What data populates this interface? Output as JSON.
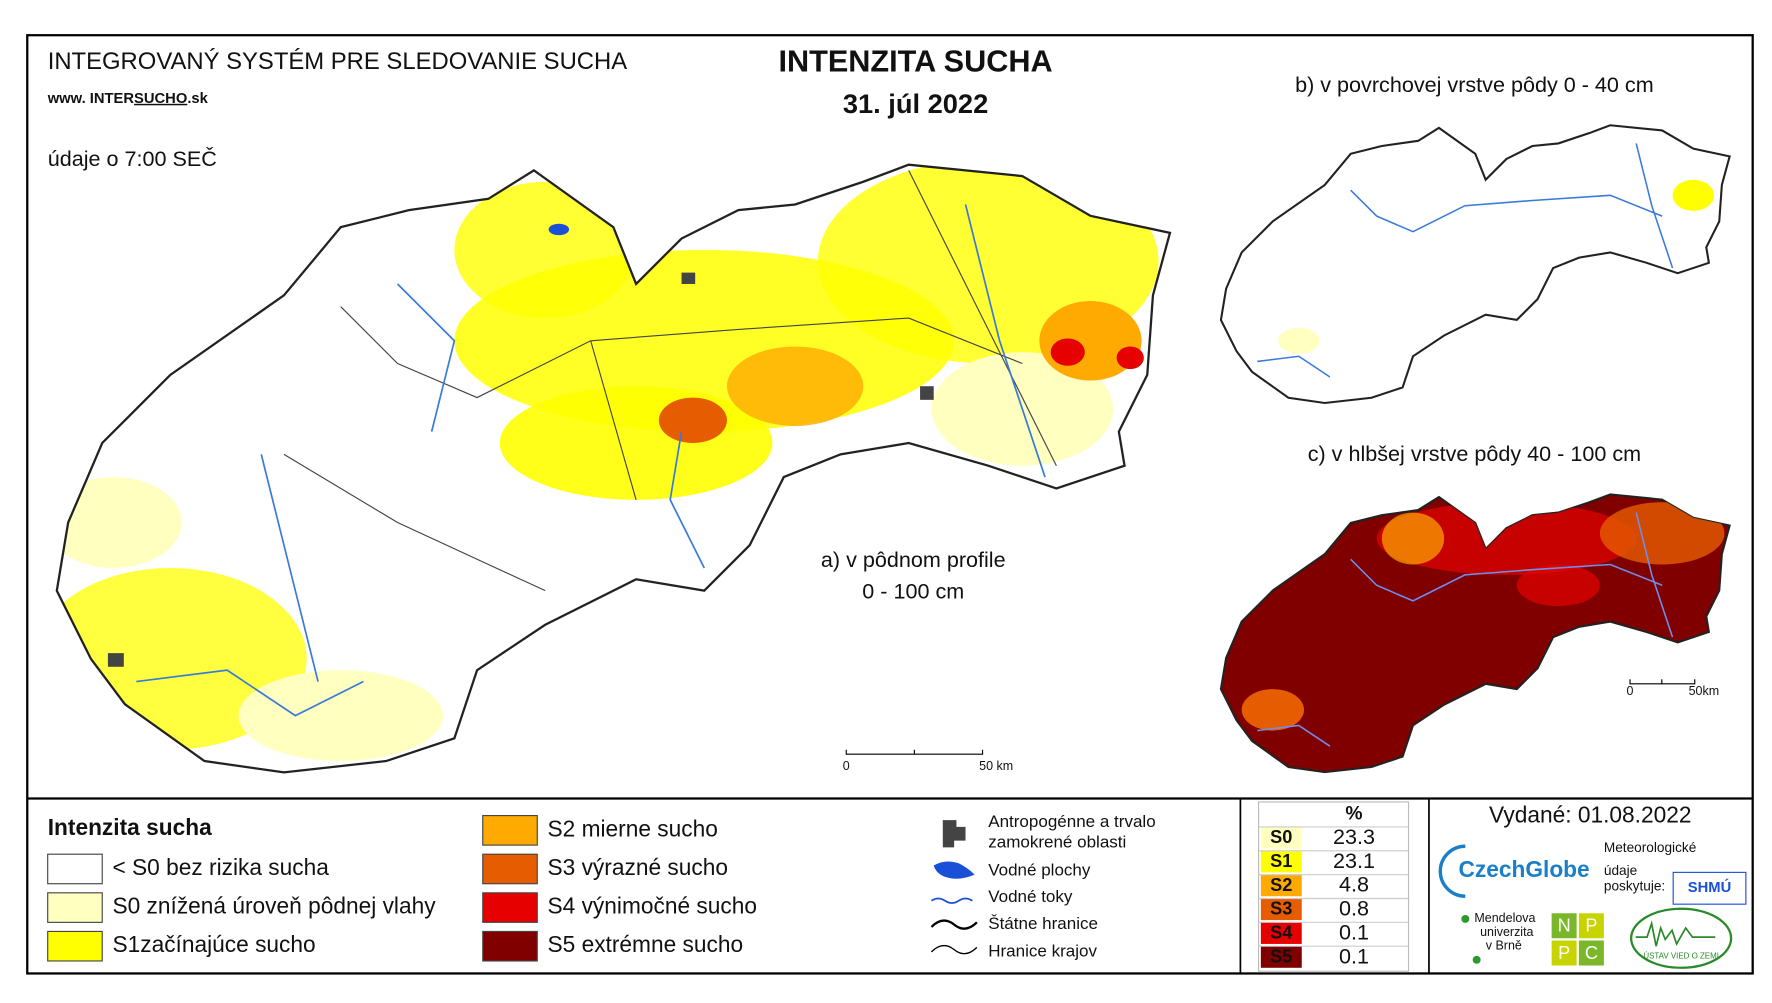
{
  "header": {
    "system": "INTEGROVANÝ SYSTÉM PRE SLEDOVANIE SUCHA",
    "website_prefix": "www. INTER",
    "website_highlight": "SUCHO",
    "website_suffix": ".sk",
    "time_note": "údaje o 7:00 SEČ"
  },
  "title": {
    "main": "INTENZITA SUCHA",
    "date": "31. júl 2022"
  },
  "maps": {
    "a": {
      "label_line1": "a) v pôdnom profile",
      "label_line2": "0 - 100 cm",
      "scale_start": "0",
      "scale_end": "50 km"
    },
    "b": {
      "label": "b) v povrchovej vrstve pôdy 0 - 40 cm"
    },
    "c": {
      "label": "c) v hlbšej vrstve pôdy 40 - 100 cm",
      "scale_start": "0",
      "scale_end": "50km"
    }
  },
  "legend": {
    "title": "Intenzita sucha",
    "classes": [
      {
        "label": "< S0 bez rizika sucha",
        "color": "#ffffff"
      },
      {
        "label": "S0 znížená úroveň pôdnej vlahy",
        "color": "#ffffc0"
      },
      {
        "label": "S1začínajúce sucho",
        "color": "#ffff00"
      },
      {
        "label": "S2 mierne sucho",
        "color": "#ffaa00"
      },
      {
        "label": "S3 výrazné sucho",
        "color": "#e65c00"
      },
      {
        "label": "S4 výnimočné sucho",
        "color": "#e60000"
      },
      {
        "label": "S5 extrémne sucho",
        "color": "#800000"
      }
    ]
  },
  "symbols": [
    {
      "label": "Antropogénne a trvalo"
    },
    {
      "label": "zamokrené oblasti"
    },
    {
      "label": "Vodné plochy"
    },
    {
      "label": "Vodné toky"
    },
    {
      "label": "Štátne hranice"
    },
    {
      "label": "Hranice krajov"
    }
  ],
  "stats": {
    "header": "%",
    "rows": [
      {
        "class": "S0",
        "percent": 23.3,
        "color": "#ffffc0"
      },
      {
        "class": "S1",
        "percent": 23.1,
        "color": "#ffff00"
      },
      {
        "class": "S2",
        "percent": 4.8,
        "color": "#ffaa00"
      },
      {
        "class": "S3",
        "percent": 0.8,
        "color": "#e65c00"
      },
      {
        "class": "S4",
        "percent": 0.1,
        "color": "#e60000"
      },
      {
        "class": "S5",
        "percent": 0.1,
        "color": "#800000"
      }
    ]
  },
  "issued": "Vydané: 01.08.2022",
  "logos": {
    "czechglobe": "CzechGlobe",
    "meteo": [
      "Meteorologické",
      "údaje",
      "poskytuje:"
    ],
    "shmu": "SHMÚ",
    "mendel": [
      "Mendelova",
      "univerzita",
      "v Brně"
    ],
    "npc": [
      "N",
      "P",
      "P",
      "C"
    ],
    "uvz": "ÚSTAV VIED O ZEMI"
  }
}
